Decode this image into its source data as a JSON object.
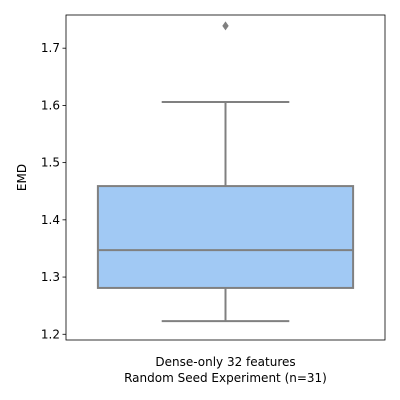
{
  "chart_data": {
    "type": "box",
    "title": "",
    "xlabel": "",
    "ylabel": "EMD",
    "categories": [
      "Dense-only 32 features\nRandom Seed Experiment (n=31)"
    ],
    "boxes": [
      {
        "category": "Dense-only 32 features\nRandom Seed Experiment (n=31)",
        "whisker_low": 1.223,
        "q1": 1.281,
        "median": 1.347,
        "q3": 1.459,
        "whisker_high": 1.606,
        "outliers": [
          1.739
        ]
      }
    ],
    "ylim": [
      1.19,
      1.758
    ],
    "yticks": [
      1.2,
      1.3,
      1.4,
      1.5,
      1.6,
      1.7
    ],
    "ytick_labels": [
      "1.2",
      "1.3",
      "1.4",
      "1.5",
      "1.6",
      "1.7"
    ],
    "grid": false,
    "colors": {
      "box_fill": "#a1c9f4",
      "line": "#808080",
      "axis": "#000000"
    }
  }
}
